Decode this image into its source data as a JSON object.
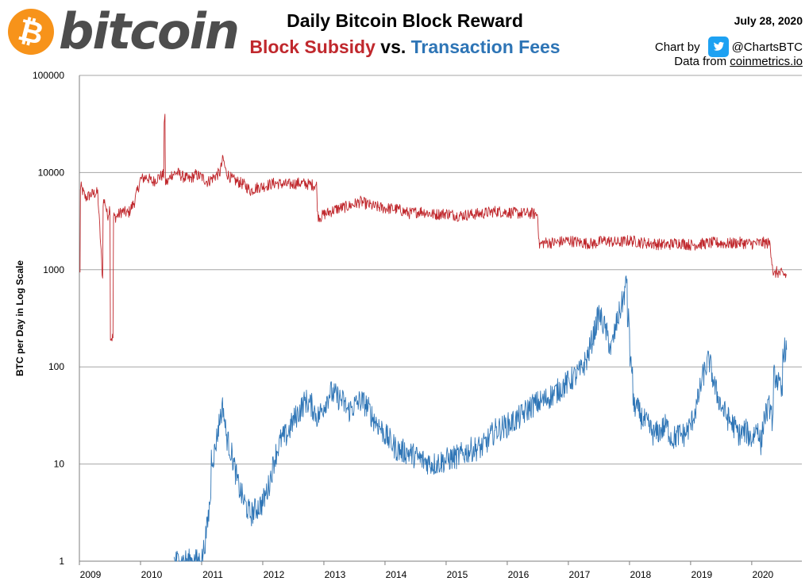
{
  "header": {
    "logo_text": "bitcoin",
    "logo_symbol": "₿",
    "title": "Daily Bitcoin Block Reward",
    "subtitle_subsidy": "Block Subsidy",
    "subtitle_vs": " vs. ",
    "subtitle_fees": "Transaction Fees",
    "date": "July 28, 2020",
    "chart_by_label": "Chart by",
    "twitter_handle": "@ChartsBTC",
    "data_from_label": "Data from ",
    "data_source": "coinmetrics.io"
  },
  "colors": {
    "subsidy": "#c0282d",
    "fees": "#2e75b6",
    "logo_orange": "#f7931a",
    "grid": "#a6a6a6"
  },
  "chart_data": {
    "type": "line",
    "title": "Daily Bitcoin Block Reward",
    "subtitle": "Block Subsidy vs. Transaction Fees",
    "ylabel": "BTC per Day  in Log Scale",
    "xlabel": "",
    "y_scale": "log",
    "ylim": [
      1,
      100000
    ],
    "xlim": [
      2009.0,
      2020.82
    ],
    "y_ticks": [
      1,
      10,
      100,
      1000,
      10000,
      100000
    ],
    "y_tick_labels": [
      "1",
      "10",
      "100",
      "1000",
      "10000",
      "100000"
    ],
    "x_ticks": [
      2009,
      2010,
      2011,
      2012,
      2013,
      2014,
      2015,
      2016,
      2017,
      2018,
      2019,
      2020
    ],
    "x_tick_labels": [
      "2009",
      "2010",
      "2011",
      "2012",
      "2013",
      "2014",
      "2015",
      "2016",
      "2017",
      "2018",
      "2019",
      "2020"
    ],
    "grid": true,
    "series": [
      {
        "name": "Block Subsidy",
        "color": "#c0282d",
        "x": [
          2009.01,
          2009.03,
          2009.1,
          2009.2,
          2009.3,
          2009.38,
          2009.42,
          2009.46,
          2009.5,
          2009.55,
          2009.6,
          2009.7,
          2009.8,
          2009.9,
          2010.0,
          2010.1,
          2010.2,
          2010.3,
          2010.38,
          2010.4,
          2010.45,
          2010.5,
          2010.6,
          2010.7,
          2010.8,
          2010.9,
          2011.0,
          2011.1,
          2011.2,
          2011.3,
          2011.35,
          2011.4,
          2011.5,
          2011.6,
          2011.7,
          2011.8,
          2011.9,
          2012.0,
          2012.2,
          2012.4,
          2012.6,
          2012.8,
          2012.88,
          2012.9,
          2012.95,
          2013.0,
          2013.2,
          2013.4,
          2013.6,
          2013.8,
          2014.0,
          2014.2,
          2014.4,
          2014.6,
          2014.8,
          2015.0,
          2015.2,
          2015.4,
          2015.6,
          2015.8,
          2016.0,
          2016.2,
          2016.4,
          2016.5,
          2016.52,
          2016.6,
          2016.8,
          2017.0,
          2017.2,
          2017.4,
          2017.6,
          2017.8,
          2018.0,
          2018.2,
          2018.4,
          2018.6,
          2018.8,
          2019.0,
          2019.2,
          2019.4,
          2019.6,
          2019.8,
          2020.0,
          2020.2,
          2020.3,
          2020.36,
          2020.4,
          2020.5,
          2020.57
        ],
        "values": [
          900,
          7000,
          5500,
          6000,
          6200,
          800,
          5000,
          3500,
          4500,
          200,
          3500,
          4000,
          3800,
          5000,
          8500,
          9000,
          8000,
          9000,
          9500,
          35000,
          8000,
          9500,
          10000,
          9000,
          8500,
          9500,
          9000,
          8000,
          9000,
          10000,
          14000,
          10000,
          8500,
          8000,
          7500,
          6500,
          7000,
          7200,
          7800,
          7500,
          7800,
          7500,
          7400,
          3600,
          3500,
          3700,
          4200,
          4500,
          5000,
          4500,
          4300,
          4200,
          3800,
          4000,
          3700,
          3800,
          3600,
          3700,
          3800,
          4000,
          3900,
          3800,
          3800,
          3700,
          1800,
          1900,
          1900,
          2000,
          1900,
          1850,
          2000,
          1900,
          2000,
          1900,
          1850,
          1800,
          1900,
          1800,
          1850,
          1900,
          1850,
          1900,
          1850,
          1900,
          1850,
          850,
          950,
          900,
          880
        ]
      },
      {
        "name": "Transaction Fees",
        "color": "#2e75b6",
        "x": [
          2010.55,
          2010.7,
          2010.85,
          2011.0,
          2011.05,
          2011.1,
          2011.15,
          2011.2,
          2011.3,
          2011.35,
          2011.4,
          2011.5,
          2011.6,
          2011.7,
          2011.8,
          2011.9,
          2012.0,
          2012.1,
          2012.2,
          2012.3,
          2012.4,
          2012.5,
          2012.6,
          2012.7,
          2012.8,
          2012.9,
          2013.0,
          2013.1,
          2013.2,
          2013.3,
          2013.4,
          2013.5,
          2013.6,
          2013.7,
          2013.8,
          2013.9,
          2014.0,
          2014.2,
          2014.4,
          2014.6,
          2014.8,
          2015.0,
          2015.2,
          2015.4,
          2015.6,
          2015.8,
          2016.0,
          2016.2,
          2016.4,
          2016.6,
          2016.8,
          2017.0,
          2017.2,
          2017.3,
          2017.4,
          2017.5,
          2017.6,
          2017.7,
          2017.8,
          2017.9,
          2017.96,
          2018.0,
          2018.05,
          2018.1,
          2018.2,
          2018.3,
          2018.4,
          2018.5,
          2018.6,
          2018.7,
          2018.8,
          2018.9,
          2019.0,
          2019.1,
          2019.2,
          2019.3,
          2019.4,
          2019.5,
          2019.6,
          2019.7,
          2019.8,
          2019.9,
          2020.0,
          2020.1,
          2020.15,
          2020.2,
          2020.3,
          2020.35,
          2020.4,
          2020.5,
          2020.57
        ],
        "values": [
          1,
          1,
          1,
          1,
          1.5,
          2.5,
          5,
          12,
          30,
          40,
          20,
          12,
          6,
          4,
          3,
          3.5,
          4,
          6,
          12,
          18,
          20,
          28,
          35,
          45,
          40,
          30,
          40,
          55,
          50,
          45,
          35,
          40,
          45,
          40,
          30,
          25,
          20,
          14,
          13,
          11,
          10,
          11,
          12,
          14,
          15,
          22,
          25,
          30,
          40,
          45,
          55,
          70,
          90,
          120,
          200,
          350,
          250,
          150,
          300,
          500,
          800,
          300,
          100,
          40,
          30,
          25,
          20,
          22,
          25,
          18,
          20,
          20,
          25,
          40,
          80,
          120,
          60,
          40,
          30,
          25,
          20,
          22,
          18,
          25,
          15,
          30,
          40,
          25,
          80,
          50,
          150
        ]
      }
    ]
  }
}
